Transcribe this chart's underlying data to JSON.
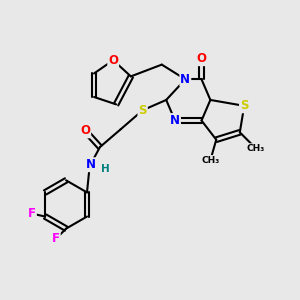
{
  "bg_color": "#e8e8e8",
  "bond_color": "#000000",
  "atom_colors": {
    "N": "#0000ff",
    "O": "#ff0000",
    "S": "#cccc00",
    "F": "#ff00ff",
    "H": "#008080",
    "C": "#000000"
  }
}
